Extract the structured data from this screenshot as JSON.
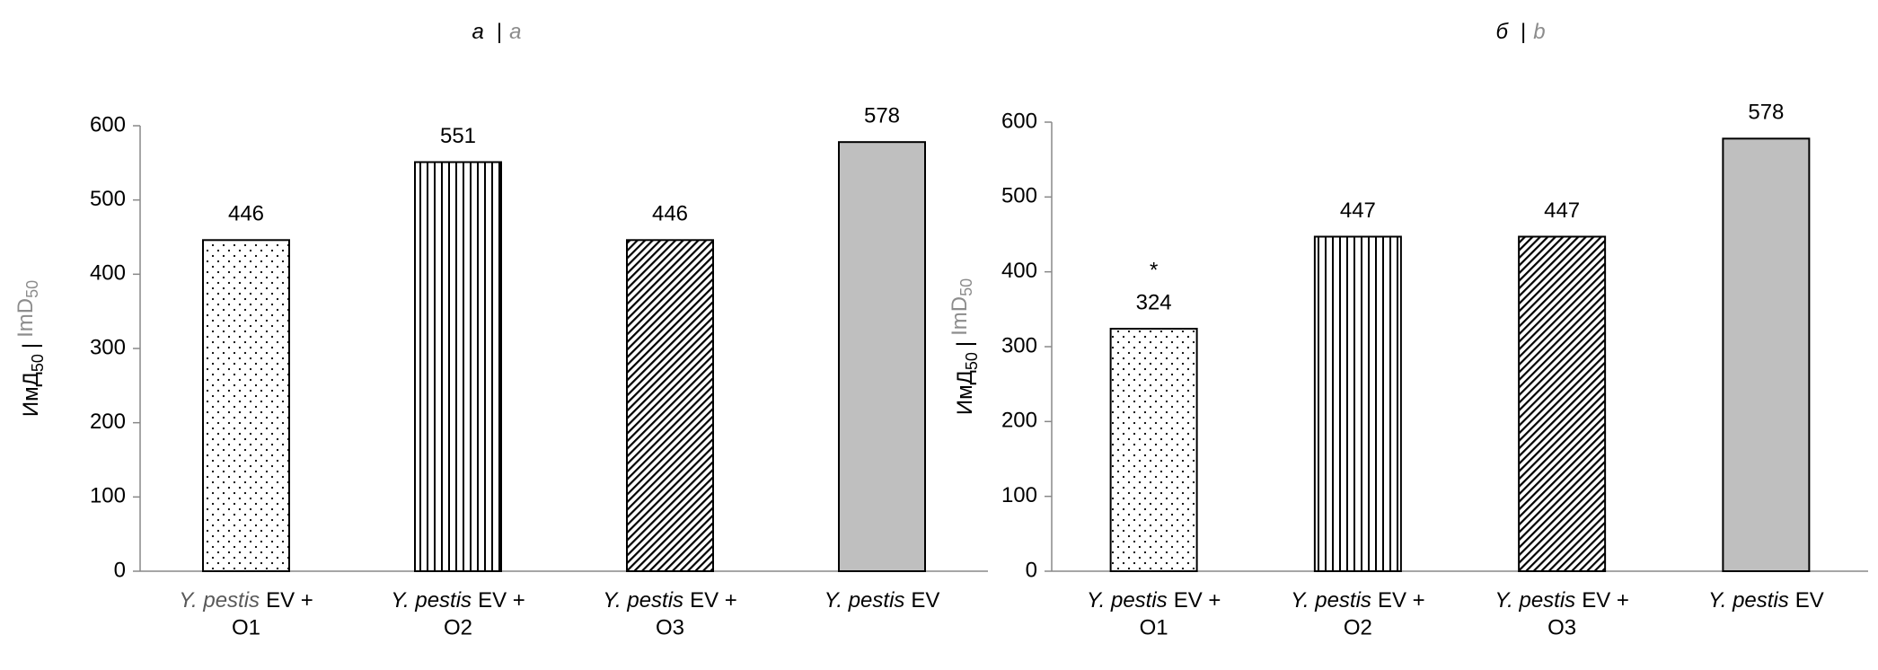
{
  "chart_data": [
    {
      "type": "bar",
      "title": "а",
      "title_alt": "a",
      "ylabel": [
        "ИмД",
        "50",
        "|",
        "ImD",
        "50"
      ],
      "categories": [
        [
          "Y. pestis",
          "EV +",
          "O1"
        ],
        [
          "Y. pestis",
          "EV +",
          "O2"
        ],
        [
          "Y. pestis",
          "EV +",
          "O3"
        ],
        [
          "Y. pestis",
          "EV"
        ]
      ],
      "values": [
        446,
        551,
        446,
        578
      ],
      "marker_labels": [
        null,
        null,
        null,
        null
      ],
      "patterns": [
        "dots",
        "vertical",
        "diagonal",
        "solid"
      ],
      "color": "#bfbfbf",
      "ylim": [
        0,
        600
      ],
      "yticks": [
        0,
        100,
        200,
        300,
        400,
        500,
        600
      ]
    },
    {
      "type": "bar",
      "title": "б",
      "title_alt": "b",
      "ylabel": [
        "ИмД",
        "50",
        "|",
        "ImD",
        "50"
      ],
      "categories": [
        [
          "Y. pestis",
          "EV +",
          "O1"
        ],
        [
          "Y. pestis",
          "EV +",
          "O2"
        ],
        [
          "Y. pestis",
          "EV +",
          "O3"
        ],
        [
          "Y. pestis",
          "EV"
        ]
      ],
      "values": [
        324,
        447,
        447,
        578
      ],
      "marker_labels": [
        "*",
        null,
        null,
        null
      ],
      "patterns": [
        "dots",
        "vertical",
        "diagonal",
        "solid"
      ],
      "color": "#bfbfbf",
      "ylim": [
        0,
        600
      ],
      "yticks": [
        0,
        100,
        200,
        300,
        400,
        500,
        600
      ]
    }
  ]
}
